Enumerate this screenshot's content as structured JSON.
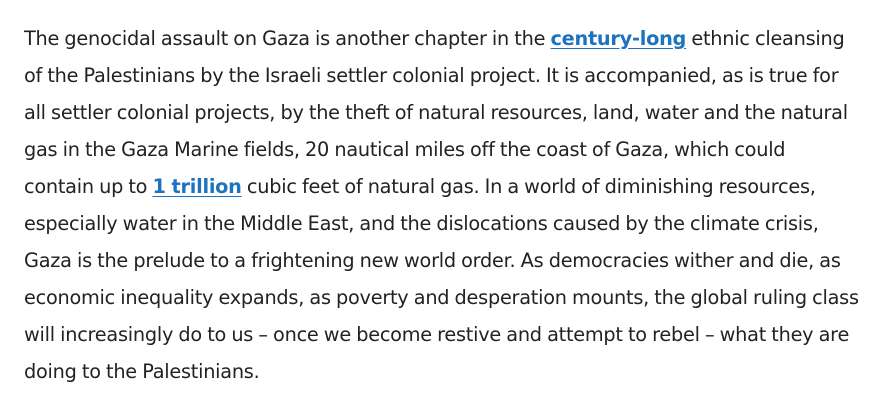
{
  "article": {
    "paragraph": {
      "segment_1": "The genocidal assault on Gaza is another chapter in the ",
      "link_1": "century-long",
      "segment_2": " ethnic cleansing of the Palestinians by the Israeli settler colonial project. It is accompanied, as is true for all settler colonial projects, by the theft of natural resources, land, water and the natural gas in the Gaza Marine fields, 20 nautical miles off the coast of Gaza, which could contain up to ",
      "link_2": "1 trillion",
      "segment_3": " cubic feet of natural gas. In a world of diminishing resources, especially water in the Middle East, and the dislocations caused by the climate crisis, Gaza is the prelude to a frightening new world order. As democracies wither and die, as economic inequality expands, as poverty and desperation mounts, the global ruling class will increasingly do to us – once we become restive and attempt to rebel – what they are doing to the Palestinians."
    },
    "colors": {
      "text": "#222222",
      "link": "#1e73be",
      "background": "#ffffff"
    }
  }
}
